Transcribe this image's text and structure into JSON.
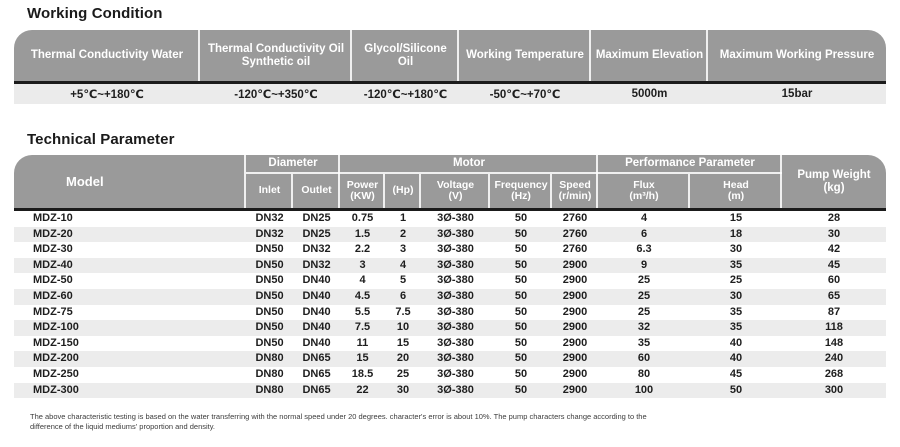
{
  "working_condition": {
    "title": "Working Condition",
    "columns": [
      "Thermal Conductivity Water",
      "Thermal Conductivity Oil\nSynthetic oil",
      "Glycol/Silicone Oil",
      "Working Temperature",
      "Maximum Elevation",
      "Maximum Working Pressure"
    ],
    "values": [
      "+5℃~+180℃",
      "-120℃~+350℃",
      "-120℃~+180℃",
      "-50℃~+70℃",
      "5000m",
      "15bar"
    ]
  },
  "technical_parameter": {
    "title": "Technical Parameter",
    "header": {
      "model": "Model",
      "groups": {
        "diameter": "Diameter",
        "motor": "Motor",
        "performance": "Performance Parameter"
      },
      "pump_weight": "Pump Weight\n(kg)",
      "sub_columns": [
        "Inlet",
        "Outlet",
        "Power\n(KW)",
        "(Hp)",
        "Voltage\n(V)",
        "Frequency\n(Hz)",
        "Speed\n(r/min)",
        "Flux\n(m³/h)",
        "Head\n(m)"
      ]
    },
    "rows": [
      [
        "MDZ-10",
        "DN32",
        "DN25",
        "0.75",
        "1",
        "3Ø-380",
        "50",
        "2760",
        "4",
        "15",
        "28"
      ],
      [
        "MDZ-20",
        "DN32",
        "DN25",
        "1.5",
        "2",
        "3Ø-380",
        "50",
        "2760",
        "6",
        "18",
        "30"
      ],
      [
        "MDZ-30",
        "DN50",
        "DN32",
        "2.2",
        "3",
        "3Ø-380",
        "50",
        "2760",
        "6.3",
        "30",
        "42"
      ],
      [
        "MDZ-40",
        "DN50",
        "DN32",
        "3",
        "4",
        "3Ø-380",
        "50",
        "2900",
        "9",
        "35",
        "45"
      ],
      [
        "MDZ-50",
        "DN50",
        "DN40",
        "4",
        "5",
        "3Ø-380",
        "50",
        "2900",
        "25",
        "25",
        "60"
      ],
      [
        "MDZ-60",
        "DN50",
        "DN40",
        "4.5",
        "6",
        "3Ø-380",
        "50",
        "2900",
        "25",
        "30",
        "65"
      ],
      [
        "MDZ-75",
        "DN50",
        "DN40",
        "5.5",
        "7.5",
        "3Ø-380",
        "50",
        "2900",
        "25",
        "35",
        "87"
      ],
      [
        "MDZ-100",
        "DN50",
        "DN40",
        "7.5",
        "10",
        "3Ø-380",
        "50",
        "2900",
        "32",
        "35",
        "118"
      ],
      [
        "MDZ-150",
        "DN50",
        "DN40",
        "11",
        "15",
        "3Ø-380",
        "50",
        "2900",
        "35",
        "40",
        "148"
      ],
      [
        "MDZ-200",
        "DN80",
        "DN65",
        "15",
        "20",
        "3Ø-380",
        "50",
        "2900",
        "60",
        "40",
        "240"
      ],
      [
        "MDZ-250",
        "DN80",
        "DN65",
        "18.5",
        "25",
        "3Ø-380",
        "50",
        "2900",
        "80",
        "45",
        "268"
      ],
      [
        "MDZ-300",
        "DN80",
        "DN65",
        "22",
        "30",
        "3Ø-380",
        "50",
        "2900",
        "100",
        "50",
        "300"
      ]
    ]
  },
  "footnote": "The above characteristic testing is based on the water transferring with the normal speed under 20 degrees.  character's error is about 10%. The pump characters change according to the\ndifference of the liquid mediums'  proportion and density.",
  "colors": {
    "header_bg": "#9a9a9a",
    "header_text": "#ffffff",
    "dark_rule": "#1b1b1b",
    "values_row_bg": "#ebebeb",
    "stripe_bg": "#ececec",
    "body_text": "#1e1e1e"
  }
}
